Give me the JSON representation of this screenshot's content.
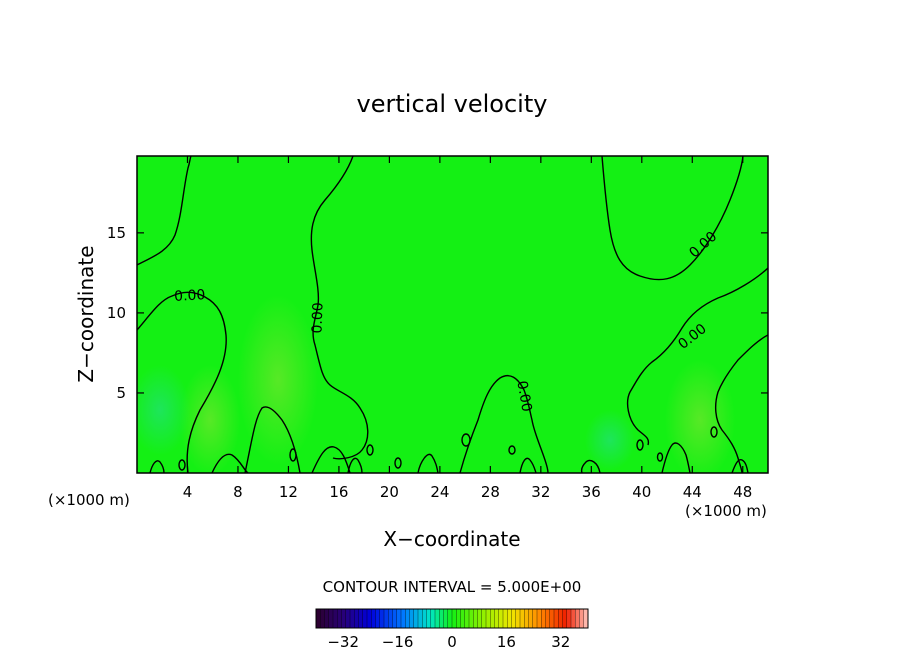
{
  "chart_data": {
    "type": "heatmap",
    "title": "vertical velocity",
    "xlabel": "X−coordinate",
    "ylabel": "Z−coordinate",
    "x_unit_left": "(×1000 m)",
    "x_unit_right": "(×1000 m)",
    "xlim": [
      0,
      50
    ],
    "ylim": [
      0,
      19.8
    ],
    "x_ticks": [
      4,
      8,
      12,
      16,
      20,
      24,
      28,
      32,
      36,
      40,
      44,
      48
    ],
    "x_tick_labels": [
      "4",
      "8",
      "12",
      "16",
      "20",
      "24",
      "28",
      "32",
      "36",
      "40",
      "44",
      "48"
    ],
    "y_ticks": [
      5,
      10,
      15
    ],
    "y_tick_labels": [
      "5",
      "10",
      "15"
    ],
    "contour_label": "0.00",
    "contour_interval_text": "CONTOUR INTERVAL = 5.000E+00",
    "colorbar": {
      "range": [
        -40,
        40
      ],
      "ticks": [
        -32,
        -16,
        0,
        16,
        32
      ],
      "tick_labels": [
        "−32",
        "−16",
        "0",
        "16",
        "32"
      ]
    },
    "colors": {
      "field_base": "#14f014",
      "zero_contour": "#000000"
    }
  }
}
